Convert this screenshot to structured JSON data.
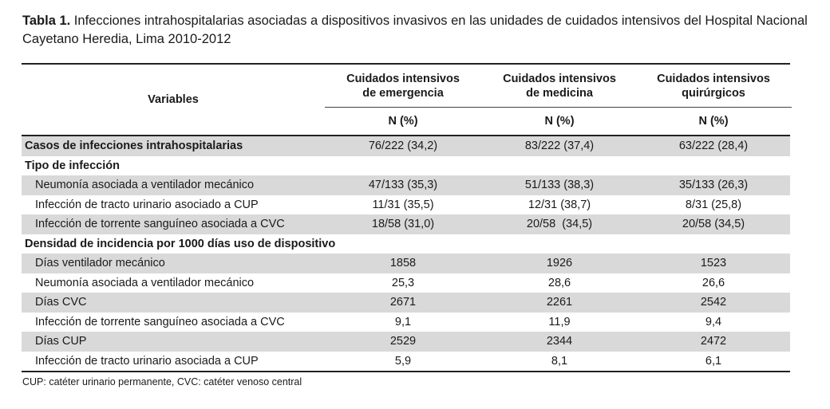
{
  "caption": {
    "label": "Tabla 1.",
    "text": " Infecciones intrahospitalarias asociadas a dispositivos invasivos en las unidades de cuidados intensivos del Hospital Nacional Cayetano Heredia, Lima 2010-2012"
  },
  "header": {
    "variables": "Variables",
    "col1_line1": "Cuidados intensivos",
    "col1_line2": "de emergencia",
    "col2_line1": "Cuidados intensivos",
    "col2_line2": "de medicina",
    "col3_line1": "Cuidados intensivos",
    "col3_line2": "quirúrgicos",
    "unit": "N (%)"
  },
  "rows": [
    {
      "label": "Casos de infecciones intrahospitalarias",
      "v1": "76/222 (34,2)",
      "v2": "83/222 (37,4)",
      "v3": "63/222 (28,4)"
    },
    {
      "label": "Tipo de infección"
    },
    {
      "label": "Neumonía asociada a ventilador mecánico",
      "v1": "47/133 (35,3)",
      "v2": "51/133 (38,3)",
      "v3": "35/133 (26,3)"
    },
    {
      "label": "Infección de tracto urinario asociado a CUP",
      "v1": "11/31 (35,5)",
      "v2": "12/31 (38,7)",
      "v3": "8/31 (25,8)"
    },
    {
      "label": "Infección de torrente sanguíneo asociada a CVC",
      "v1": "18/58 (31,0)",
      "v2": "20/58  (34,5)",
      "v3": "20/58 (34,5)"
    },
    {
      "label": "Densidad de incidencia por 1000 días uso de dispositivo"
    },
    {
      "label": "Días ventilador mecánico",
      "v1": "1858",
      "v2": "1926",
      "v3": "1523"
    },
    {
      "label": "Neumonía asociada a ventilador mecánico",
      "v1": "25,3",
      "v2": "28,6",
      "v3": "26,6"
    },
    {
      "label": "Días CVC",
      "v1": "2671",
      "v2": "2261",
      "v3": "2542"
    },
    {
      "label": "Infección de torrente sanguíneo asociada a CVC",
      "v1": "9,1",
      "v2": "11,9",
      "v3": "9,4"
    },
    {
      "label": "Días CUP",
      "v1": "2529",
      "v2": "2344",
      "v3": "2472"
    },
    {
      "label": "Infección de tracto urinario asociada a CUP",
      "v1": "5,9",
      "v2": "8,1",
      "v3": "6,1"
    }
  ],
  "footnote": "CUP: catéter urinario permanente, CVC: catéter venoso central"
}
